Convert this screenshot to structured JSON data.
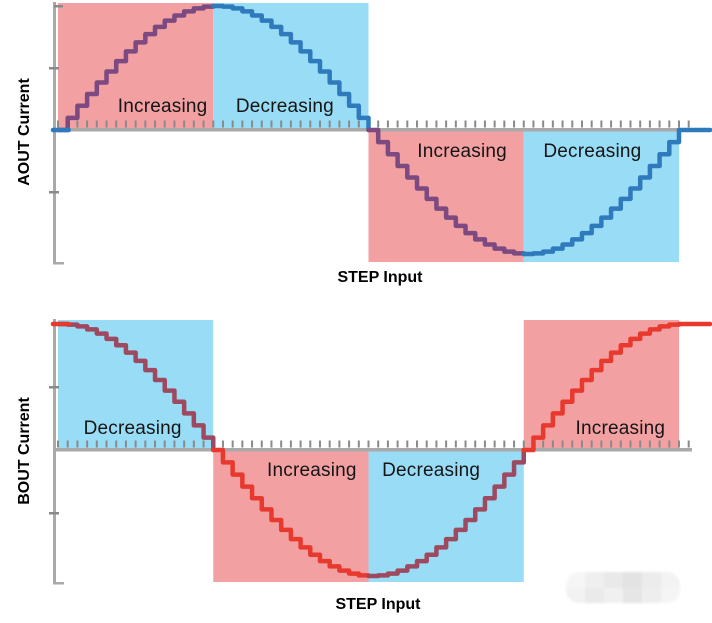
{
  "charts": [
    {
      "id": "aout",
      "y_axis_title": "AOUT Current",
      "x_axis_title": "STEP Input",
      "waveform": "sine",
      "regions": [
        {
          "label": "Increasing",
          "trend": "increasing",
          "side": "above",
          "fill": "#F2A0A2",
          "line": "#7C4A80"
        },
        {
          "label": "Decreasing",
          "trend": "decreasing",
          "side": "above",
          "fill": "#99DCF5",
          "line": "#2F7ABD"
        },
        {
          "label": "Increasing",
          "trend": "increasing",
          "side": "below",
          "fill": "#F2A0A2",
          "line": "#7C4A80"
        },
        {
          "label": "Decreasing",
          "trend": "decreasing",
          "side": "below",
          "fill": "#99DCF5",
          "line": "#2F7ABD"
        }
      ]
    },
    {
      "id": "bout",
      "y_axis_title": "BOUT Current",
      "x_axis_title": "STEP Input",
      "waveform": "cosine",
      "regions": [
        {
          "label": "Decreasing",
          "trend": "decreasing",
          "side": "above",
          "fill": "#99DCF5",
          "line": "#9D4A60"
        },
        {
          "label": "Increasing",
          "trend": "increasing",
          "side": "below",
          "fill": "#F2A0A2",
          "line": "#E8392F"
        },
        {
          "label": "Decreasing",
          "trend": "decreasing",
          "side": "below",
          "fill": "#99DCF5",
          "line": "#9D4A60"
        },
        {
          "label": "Increasing",
          "trend": "increasing",
          "side": "above",
          "fill": "#F2A0A2",
          "line": "#E8392F"
        }
      ]
    }
  ],
  "colors": {
    "axis": "#A9A9A9",
    "tick": "#8A8A8A",
    "label_text": "#151515",
    "increasing_fill": "#F2A0A2",
    "decreasing_fill": "#99DCF5"
  },
  "watermark": {
    "cells": [
      "#f6f6f6",
      "#efefef",
      "#e9e9e9",
      "#e3e3e3",
      "#ececec",
      "#f3f3f3",
      "#f2f2f2",
      "#eaeaea",
      "#f0f0f0",
      "#e6e6e6",
      "#eeeeee",
      "#f5f5f5"
    ]
  },
  "chart_data": [
    {
      "type": "line",
      "title": "AOUT Current vs STEP Input (microstepped sine)",
      "xlabel": "STEP Input",
      "ylabel": "AOUT Current",
      "waveform": "sine staircase",
      "steps_per_cycle": 64,
      "steps_per_quarter": 16,
      "amplitude": 1,
      "x_range_steps": [
        0,
        64
      ],
      "y_range": [
        -1,
        1
      ],
      "key_points_step_value": [
        [
          0,
          0
        ],
        [
          16,
          1
        ],
        [
          32,
          0
        ],
        [
          48,
          -1
        ],
        [
          64,
          0
        ]
      ],
      "quarter_regions": [
        {
          "steps": [
            0,
            16
          ],
          "trend": "Increasing",
          "polarity": "positive"
        },
        {
          "steps": [
            16,
            32
          ],
          "trend": "Decreasing",
          "polarity": "positive"
        },
        {
          "steps": [
            32,
            48
          ],
          "trend": "Increasing",
          "polarity": "negative"
        },
        {
          "steps": [
            48,
            64
          ],
          "trend": "Decreasing",
          "polarity": "negative"
        }
      ],
      "grid": false,
      "legend": false
    },
    {
      "type": "line",
      "title": "BOUT Current vs STEP Input (microstepped cosine)",
      "xlabel": "STEP Input",
      "ylabel": "BOUT Current",
      "waveform": "cosine staircase",
      "steps_per_cycle": 64,
      "steps_per_quarter": 16,
      "amplitude": 1,
      "x_range_steps": [
        0,
        64
      ],
      "y_range": [
        -1,
        1
      ],
      "key_points_step_value": [
        [
          0,
          1
        ],
        [
          16,
          0
        ],
        [
          32,
          -1
        ],
        [
          48,
          0
        ],
        [
          64,
          1
        ]
      ],
      "quarter_regions": [
        {
          "steps": [
            0,
            16
          ],
          "trend": "Decreasing",
          "polarity": "positive"
        },
        {
          "steps": [
            16,
            32
          ],
          "trend": "Increasing",
          "polarity": "negative"
        },
        {
          "steps": [
            32,
            48
          ],
          "trend": "Decreasing",
          "polarity": "negative"
        },
        {
          "steps": [
            48,
            64
          ],
          "trend": "Increasing",
          "polarity": "positive"
        }
      ],
      "grid": false,
      "legend": false
    }
  ]
}
